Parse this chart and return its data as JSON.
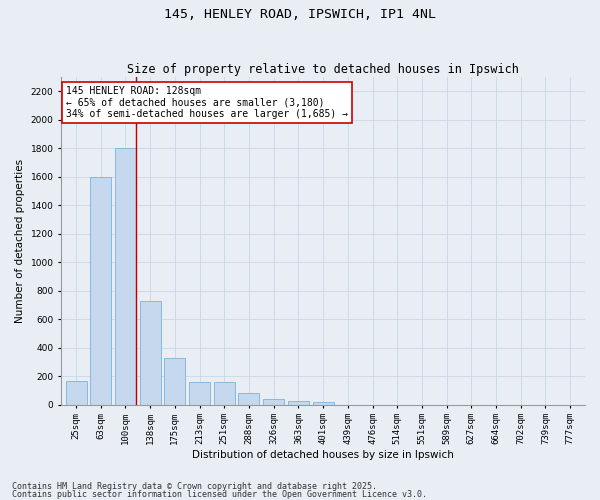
{
  "title": "145, HENLEY ROAD, IPSWICH, IP1 4NL",
  "subtitle": "Size of property relative to detached houses in Ipswich",
  "xlabel": "Distribution of detached houses by size in Ipswich",
  "ylabel": "Number of detached properties",
  "categories": [
    "25sqm",
    "63sqm",
    "100sqm",
    "138sqm",
    "175sqm",
    "213sqm",
    "251sqm",
    "288sqm",
    "326sqm",
    "363sqm",
    "401sqm",
    "439sqm",
    "476sqm",
    "514sqm",
    "551sqm",
    "589sqm",
    "627sqm",
    "664sqm",
    "702sqm",
    "739sqm",
    "777sqm"
  ],
  "values": [
    165,
    1600,
    1800,
    730,
    330,
    160,
    160,
    80,
    40,
    25,
    15,
    0,
    0,
    0,
    0,
    0,
    0,
    0,
    0,
    0,
    0
  ],
  "bar_color": "#c5d8ed",
  "bar_edge_color": "#6aaad4",
  "grid_color": "#c8d8e8",
  "background_color": "#e8eef4",
  "annotation_text": "145 HENLEY ROAD: 128sqm\n← 65% of detached houses are smaller (3,180)\n34% of semi-detached houses are larger (1,685) →",
  "annotation_box_facecolor": "#ffffff",
  "annotation_box_edge": "#cc0000",
  "vline_color": "#bb0000",
  "ylim": [
    0,
    2300
  ],
  "yticks": [
    0,
    200,
    400,
    600,
    800,
    1000,
    1200,
    1400,
    1600,
    1800,
    2000,
    2200
  ],
  "footnote1": "Contains HM Land Registry data © Crown copyright and database right 2025.",
  "footnote2": "Contains public sector information licensed under the Open Government Licence v3.0.",
  "title_fontsize": 9.5,
  "subtitle_fontsize": 8.5,
  "axis_label_fontsize": 7.5,
  "tick_fontsize": 6.5,
  "annotation_fontsize": 7,
  "footnote_fontsize": 6
}
